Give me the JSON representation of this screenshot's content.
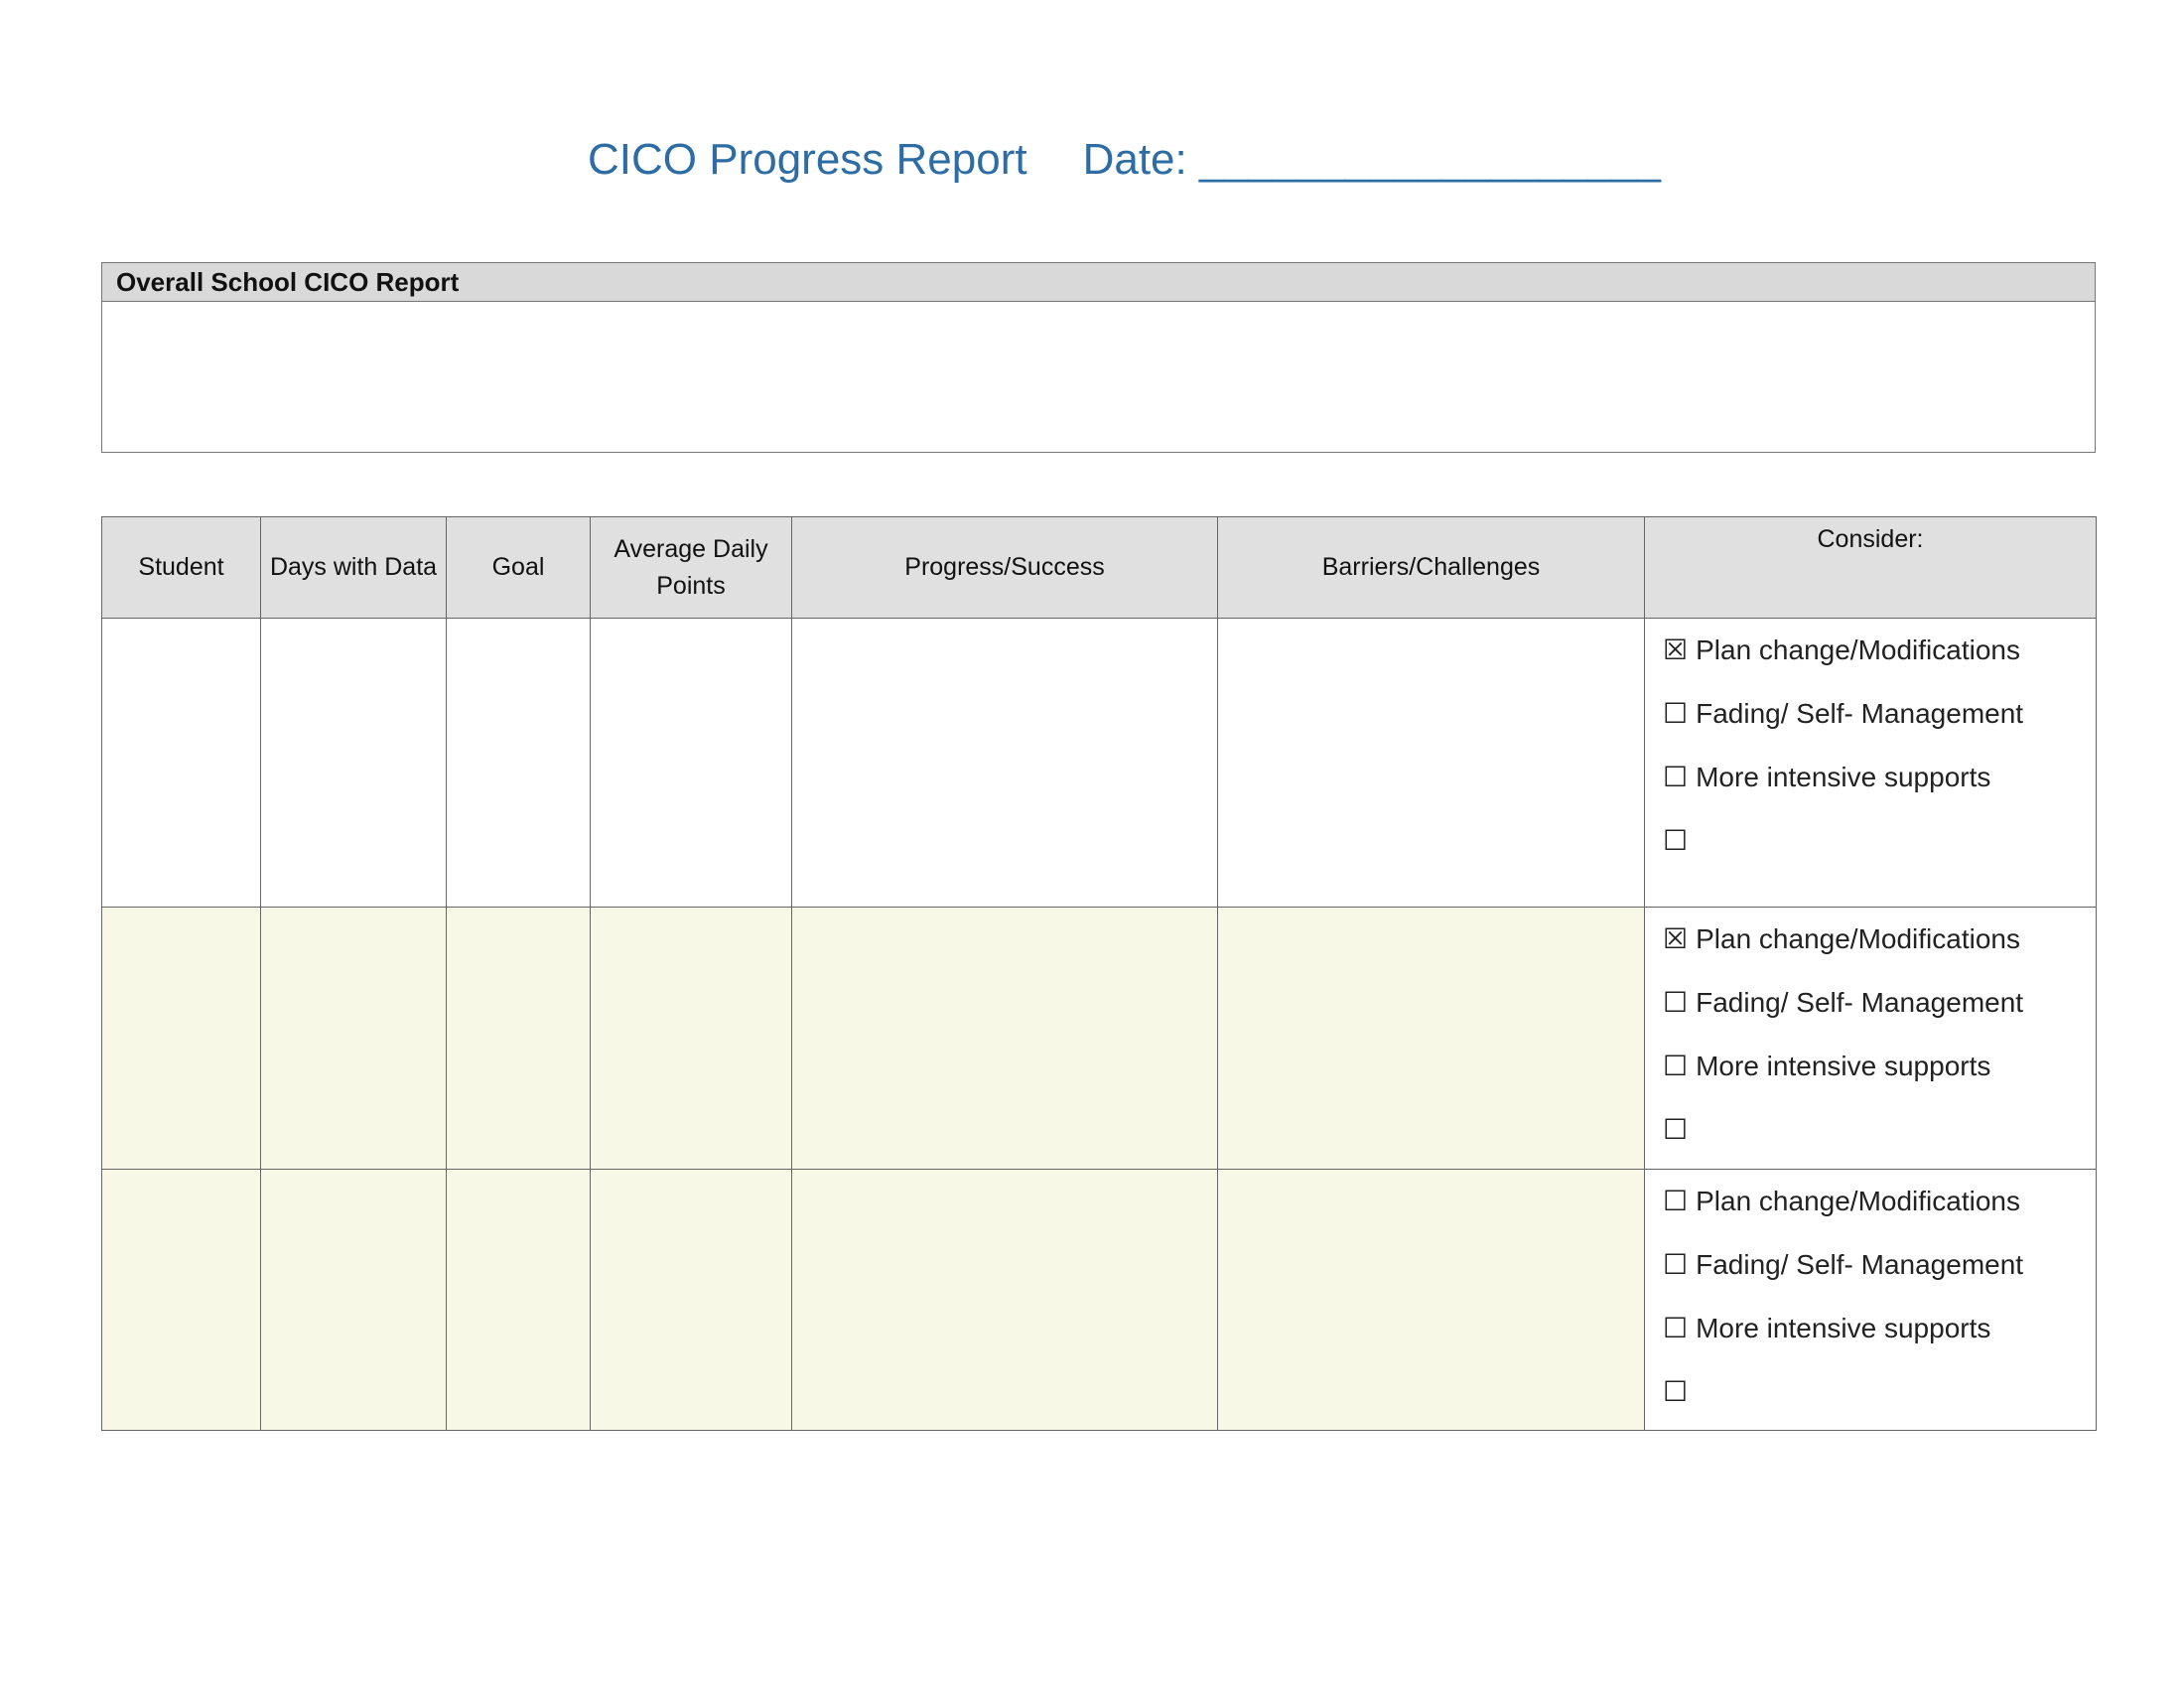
{
  "header": {
    "title": "CICO Progress Report",
    "date_label": "Date: ___________________"
  },
  "overall": {
    "heading": "Overall School CICO Report"
  },
  "table": {
    "columns": [
      "Student",
      "Days with Data",
      "Goal",
      "Average Daily Points",
      "Progress/Success",
      "Barriers/Challenges",
      "Consider:"
    ],
    "rows": [
      {
        "options": [
          {
            "box": "☒",
            "label": "Plan change/Modifications"
          },
          {
            "box": "☐",
            "label": "Fading/ Self- Management"
          },
          {
            "box": "☐",
            "label": "More intensive supports"
          },
          {
            "box": "☐"
          }
        ]
      },
      {
        "options": [
          {
            "box": "☒",
            "label": "Plan change/Modifications"
          },
          {
            "box": "☐",
            "label": "Fading/ Self- Management"
          },
          {
            "box": "☐",
            "label": "More intensive supports"
          },
          {
            "box": "☐"
          }
        ]
      },
      {
        "options": [
          {
            "box": "☐",
            "label": "Plan change/Modifications"
          },
          {
            "box": "☐",
            "label": "Fading/ Self- Management"
          },
          {
            "box": "☐",
            "label": "More intensive supports"
          },
          {
            "box": "☐"
          }
        ]
      }
    ]
  }
}
